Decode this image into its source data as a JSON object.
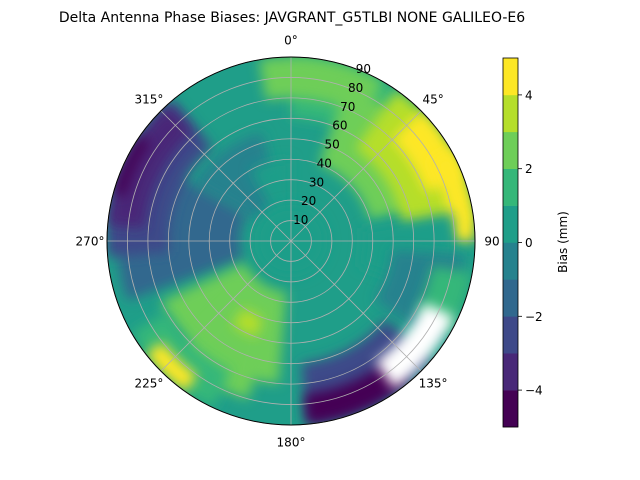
{
  "chart_data": {
    "type": "polar-contour",
    "title": "Delta Antenna Phase Biases: JAVGRANT_G5TLBI NONE GALILEO-E6",
    "angular_axis": {
      "direction": "clockwise",
      "zero_location": "N",
      "tick_labels": [
        "0°",
        "45°",
        "90",
        "135°",
        "180°",
        "225°",
        "270°",
        "315°"
      ]
    },
    "radial_axis": {
      "quantity": "zenith angle",
      "range": [
        0,
        90
      ],
      "tick_labels": [
        "10",
        "20",
        "30",
        "40",
        "50",
        "60",
        "70",
        "80",
        "90"
      ]
    },
    "colorbar": {
      "label": "Bias (mm)",
      "range": [
        -5,
        5
      ],
      "tick_labels": [
        "−4",
        "−2",
        "0",
        "2",
        "4"
      ],
      "levels": [
        -5,
        -4,
        -3,
        -2,
        -1,
        0,
        1,
        2,
        3,
        4,
        5
      ],
      "colors": [
        "#440154",
        "#482878",
        "#3e4989",
        "#31688e",
        "#26828e",
        "#1f9e89",
        "#35b779",
        "#6ece58",
        "#b5de2b",
        "#fde725"
      ]
    },
    "features": [
      {
        "location": "azimuth 45°–90°, zenith 55°–90°",
        "bias": 4.5
      },
      {
        "location": "azimuth 300°–360°, zenith 20°–80°",
        "bias": -1.5
      },
      {
        "location": "azimuth 270°–320°, zenith 70°–90°",
        "bias": -3.5
      },
      {
        "location": "azimuth 200°–215°, zenith 45°",
        "bias": 3.5
      },
      {
        "location": "azimuth 220°–225°, zenith 88°",
        "bias": 4.5
      },
      {
        "location": "azimuth 140°–175°, zenith 80°–90°",
        "bias": -4.5
      },
      {
        "location": "zenith 0°–15°",
        "bias": 0.0
      }
    ],
    "no_data_region": "azimuth 115°–145°, zenith 70°–88°"
  }
}
